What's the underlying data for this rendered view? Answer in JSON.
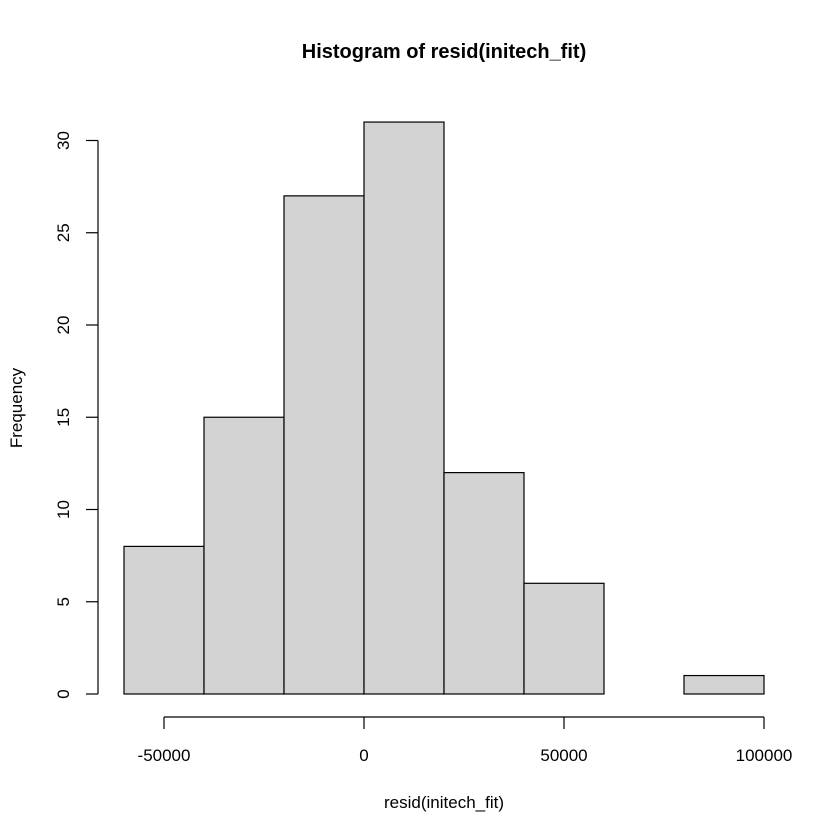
{
  "chart_data": {
    "type": "bar",
    "title": "Histogram of resid(initech_fit)",
    "xlabel": "resid(initech_fit)",
    "ylabel": "Frequency",
    "bins": [
      {
        "from": -60000,
        "to": -40000,
        "count": 8
      },
      {
        "from": -40000,
        "to": -20000,
        "count": 15
      },
      {
        "from": -20000,
        "to": 0,
        "count": 27
      },
      {
        "from": 0,
        "to": 20000,
        "count": 31
      },
      {
        "from": 20000,
        "to": 40000,
        "count": 12
      },
      {
        "from": 40000,
        "to": 60000,
        "count": 6
      },
      {
        "from": 60000,
        "to": 80000,
        "count": 0
      },
      {
        "from": 80000,
        "to": 100000,
        "count": 1
      }
    ],
    "x_ticks": [
      -50000,
      0,
      50000,
      100000
    ],
    "x_tick_labels": [
      "-50000",
      "0",
      "50000",
      "100000"
    ],
    "y_ticks": [
      0,
      5,
      10,
      15,
      20,
      25,
      30
    ],
    "y_tick_labels": [
      "0",
      "5",
      "10",
      "15",
      "20",
      "25",
      "30"
    ],
    "xlim": [
      -60000,
      100000
    ],
    "ylim": [
      0,
      31
    ],
    "bar_color": "#d3d3d3",
    "grid": false
  }
}
